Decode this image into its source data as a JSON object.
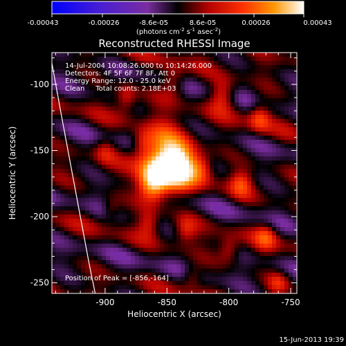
{
  "colorbar": {
    "ticks": [
      "-0.00043",
      "-0.00026",
      "-8.6e-05",
      "8.6e-05",
      "0.00026",
      "0.00043"
    ],
    "units": "(photons cm",
    "units_exp1": "-2",
    "units_mid": " s",
    "units_exp2": "-1",
    "units_mid2": " asec",
    "units_exp3": "-2",
    "units_end": ")"
  },
  "annotations": {
    "time_range": "14-Jul-2004 10:08:26.000 to 10:14:26.000",
    "detectors": "Detectors: 4F 5F 6F 7F 8F, Att 0",
    "energy": "Energy Range: 12.0 - 25.0 keV",
    "clean": "Clean     Total counts: 2.18E+03",
    "peak": "Position of Peak = [-856,-164]"
  },
  "footer_date": "15-Jun-2013 19:39",
  "chart_data": {
    "type": "heatmap",
    "title": "Reconstructed RHESSI Image",
    "xlabel": "Heliocentric X (arcsec)",
    "ylabel": "Heliocentric Y (arcsec)",
    "xlim": [
      -943,
      -745
    ],
    "ylim": [
      -258,
      -76
    ],
    "xticks": [
      -900,
      -850,
      -800,
      -750
    ],
    "yticks": [
      -100,
      -150,
      -200,
      -250
    ],
    "colorbar_range": [
      -0.00043,
      0.00043
    ],
    "peak": [
      -856,
      -164
    ],
    "limb_curve_x": [
      -943,
      -936,
      -928,
      -920,
      -913,
      -908
    ],
    "limb_curve_y": [
      -84,
      -120,
      -160,
      -200,
      -235,
      -258
    ],
    "blobs": [
      {
        "x": -853,
        "y": -158,
        "amp": 1.0,
        "sx": 12,
        "sy": 16
      },
      {
        "x": -838,
        "y": -160,
        "amp": 0.8,
        "sx": 9,
        "sy": 11
      },
      {
        "x": -862,
        "y": -176,
        "amp": 0.7,
        "sx": 8,
        "sy": 9
      },
      {
        "x": -822,
        "y": -163,
        "amp": 0.45,
        "sx": 7,
        "sy": 8
      },
      {
        "x": -870,
        "y": -145,
        "amp": 0.35,
        "sx": 6,
        "sy": 7
      },
      {
        "x": -883,
        "y": -110,
        "amp": 0.35,
        "sx": 6,
        "sy": 8
      },
      {
        "x": -845,
        "y": -98,
        "amp": 0.38,
        "sx": 7,
        "sy": 8
      },
      {
        "x": -805,
        "y": -108,
        "amp": 0.42,
        "sx": 7,
        "sy": 8
      },
      {
        "x": -775,
        "y": -125,
        "amp": 0.4,
        "sx": 6,
        "sy": 8
      },
      {
        "x": -790,
        "y": -175,
        "amp": 0.38,
        "sx": 6,
        "sy": 7
      },
      {
        "x": -770,
        "y": -215,
        "amp": 0.35,
        "sx": 6,
        "sy": 7
      },
      {
        "x": -800,
        "y": -225,
        "amp": 0.32,
        "sx": 6,
        "sy": 7
      },
      {
        "x": -835,
        "y": -210,
        "amp": 0.3,
        "sx": 6,
        "sy": 7
      },
      {
        "x": -865,
        "y": -205,
        "amp": 0.3,
        "sx": 6,
        "sy": 7
      },
      {
        "x": -900,
        "y": -150,
        "amp": 0.25,
        "sx": 6,
        "sy": 7
      },
      {
        "x": -895,
        "y": -195,
        "amp": 0.22,
        "sx": 5,
        "sy": 6
      },
      {
        "x": -830,
        "y": -245,
        "amp": 0.28,
        "sx": 6,
        "sy": 6
      },
      {
        "x": -760,
        "y": -250,
        "amp": 0.3,
        "sx": 6,
        "sy": 6
      }
    ]
  }
}
